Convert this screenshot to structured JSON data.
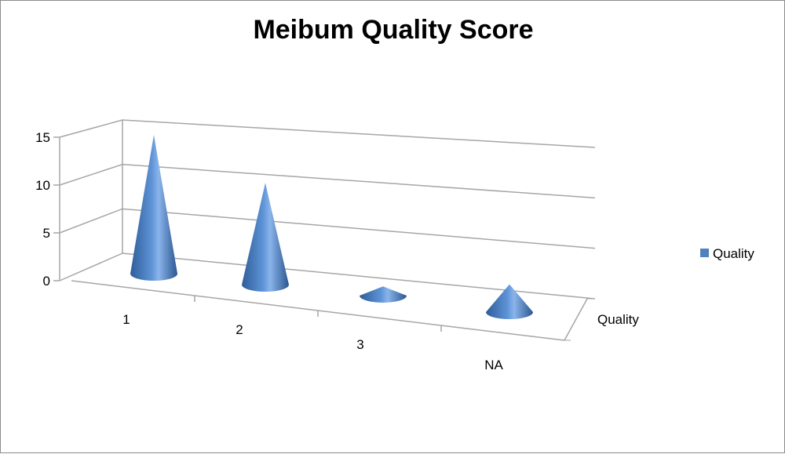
{
  "chart_data": {
    "type": "bar",
    "style": "3d-cone",
    "title": "Meibum Quality Score",
    "categories": [
      "1",
      "2",
      "3",
      "NA"
    ],
    "series": [
      {
        "name": "Quality",
        "values": [
          15,
          11,
          1,
          3
        ],
        "color": "#4f81bd"
      }
    ],
    "depth_axis_label": "Quality",
    "ylim": [
      0,
      15
    ],
    "yticks": [
      "0",
      "5",
      "10",
      "15"
    ],
    "grid": true,
    "legend": "right"
  }
}
